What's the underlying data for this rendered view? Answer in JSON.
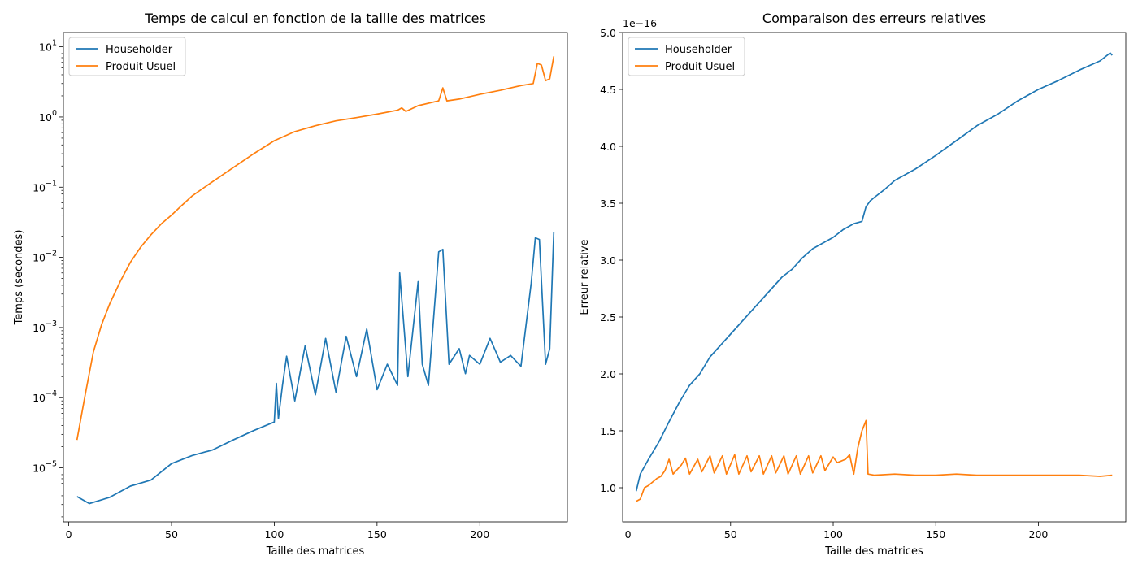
{
  "chart_data": [
    {
      "type": "line",
      "title": "Temps de calcul en fonction de la taille des matrices",
      "xlabel": "Taille des matrices",
      "ylabel": "Temps (secondes)",
      "yscale": "log",
      "xlim": [
        -2.6,
        242.6
      ],
      "ylim": [
        1.7e-06,
        16
      ],
      "xticks": [
        0,
        50,
        100,
        150,
        200
      ],
      "xtick_labels": [
        "0",
        "50",
        "100",
        "150",
        "200"
      ],
      "yticks": [
        1e-05,
        0.0001,
        0.001,
        0.01,
        0.1,
        1,
        10
      ],
      "ytick_labels": [
        {
          "base": "10",
          "exp": "−5"
        },
        {
          "base": "10",
          "exp": "−4"
        },
        {
          "base": "10",
          "exp": "−3"
        },
        {
          "base": "10",
          "exp": "−2"
        },
        {
          "base": "10",
          "exp": "−1"
        },
        {
          "base": "10",
          "exp": "0"
        },
        {
          "base": "10",
          "exp": "1"
        }
      ],
      "legend": {
        "position": "upper-left"
      },
      "series": [
        {
          "name": "Householder",
          "color": "#1f77b4",
          "x": [
            4,
            10,
            20,
            30,
            40,
            50,
            60,
            70,
            80,
            90,
            100,
            101,
            102,
            104,
            106,
            110,
            115,
            120,
            125,
            130,
            135,
            140,
            145,
            150,
            155,
            160,
            161,
            165,
            170,
            172,
            175,
            180,
            182,
            185,
            190,
            193,
            195,
            200,
            205,
            210,
            215,
            220,
            225,
            227,
            229,
            232,
            234,
            236
          ],
          "values": [
            3.9e-06,
            3.1e-06,
            3.8e-06,
            5.5e-06,
            6.7e-06,
            1.15e-05,
            1.5e-05,
            1.8e-05,
            2.5e-05,
            3.4e-05,
            4.5e-05,
            0.00016,
            5e-05,
            0.00015,
            0.00039,
            9e-05,
            0.00055,
            0.00011,
            0.0007,
            0.00012,
            0.00075,
            0.0002,
            0.00095,
            0.00013,
            0.0003,
            0.00015,
            0.006,
            0.0002,
            0.0045,
            0.0003,
            0.00015,
            0.012,
            0.013,
            0.0003,
            0.0005,
            0.00022,
            0.0004,
            0.0003,
            0.0007,
            0.00032,
            0.0004,
            0.00028,
            0.0043,
            0.019,
            0.018,
            0.0003,
            0.0005,
            0.023
          ]
        },
        {
          "name": "Produit Usuel",
          "color": "#ff7f0e",
          "x": [
            4,
            8,
            12,
            16,
            20,
            25,
            30,
            35,
            40,
            45,
            50,
            55,
            60,
            70,
            80,
            90,
            100,
            110,
            120,
            130,
            140,
            150,
            160,
            162,
            164,
            170,
            180,
            182,
            184,
            190,
            200,
            210,
            220,
            226,
            228,
            230,
            232,
            234,
            236
          ],
          "values": [
            2.5e-05,
            0.00011,
            0.00045,
            0.0011,
            0.0022,
            0.0045,
            0.0085,
            0.014,
            0.021,
            0.03,
            0.04,
            0.055,
            0.075,
            0.12,
            0.19,
            0.3,
            0.46,
            0.62,
            0.75,
            0.88,
            0.98,
            1.1,
            1.25,
            1.35,
            1.2,
            1.45,
            1.7,
            2.6,
            1.7,
            1.8,
            2.1,
            2.4,
            2.8,
            3.0,
            5.8,
            5.5,
            3.3,
            3.5,
            7.3
          ]
        }
      ]
    },
    {
      "type": "line",
      "title": "Comparaison des erreurs relatives",
      "xlabel": "Taille des matrices",
      "ylabel": "Erreur relative",
      "offset_label": "1e−16",
      "yscale": "linear",
      "xlim": [
        -2.6,
        242.6
      ],
      "ylim": [
        0.7,
        5.0
      ],
      "xticks": [
        0,
        50,
        100,
        150,
        200
      ],
      "xtick_labels": [
        "0",
        "50",
        "100",
        "150",
        "200"
      ],
      "yticks": [
        1.0,
        1.5,
        2.0,
        2.5,
        3.0,
        3.5,
        4.0,
        4.5,
        5.0
      ],
      "ytick_labels": [
        "1.0",
        "1.5",
        "2.0",
        "2.5",
        "3.0",
        "3.5",
        "4.0",
        "4.5",
        "5.0"
      ],
      "legend": {
        "position": "upper-left"
      },
      "series": [
        {
          "name": "Householder",
          "color": "#1f77b4",
          "x": [
            4,
            6,
            10,
            15,
            20,
            25,
            30,
            35,
            40,
            45,
            50,
            55,
            60,
            65,
            70,
            75,
            80,
            85,
            90,
            95,
            100,
            105,
            110,
            114,
            116,
            118,
            120,
            125,
            130,
            140,
            150,
            160,
            170,
            180,
            190,
            200,
            210,
            220,
            230,
            235,
            236
          ],
          "values": [
            0.97,
            1.12,
            1.25,
            1.4,
            1.58,
            1.75,
            1.9,
            2.0,
            2.15,
            2.25,
            2.35,
            2.45,
            2.55,
            2.65,
            2.75,
            2.85,
            2.92,
            3.02,
            3.1,
            3.15,
            3.2,
            3.27,
            3.32,
            3.34,
            3.47,
            3.52,
            3.55,
            3.62,
            3.7,
            3.8,
            3.92,
            4.05,
            4.18,
            4.28,
            4.4,
            4.5,
            4.58,
            4.67,
            4.75,
            4.82,
            4.8
          ]
        },
        {
          "name": "Produit Usuel",
          "color": "#ff7f0e",
          "x": [
            4,
            6,
            8,
            10,
            12,
            14,
            16,
            18,
            20,
            22,
            26,
            28,
            30,
            34,
            36,
            40,
            42,
            46,
            48,
            52,
            54,
            58,
            60,
            64,
            66,
            70,
            72,
            76,
            78,
            82,
            84,
            88,
            90,
            94,
            96,
            100,
            102,
            106,
            108,
            110,
            112,
            114,
            116,
            117,
            120,
            130,
            140,
            150,
            160,
            170,
            180,
            190,
            200,
            210,
            220,
            230,
            236
          ],
          "values": [
            0.88,
            0.9,
            1.0,
            1.02,
            1.05,
            1.08,
            1.1,
            1.15,
            1.25,
            1.12,
            1.2,
            1.26,
            1.12,
            1.25,
            1.14,
            1.28,
            1.13,
            1.28,
            1.12,
            1.29,
            1.12,
            1.28,
            1.14,
            1.28,
            1.12,
            1.28,
            1.13,
            1.28,
            1.12,
            1.28,
            1.12,
            1.28,
            1.13,
            1.28,
            1.15,
            1.27,
            1.22,
            1.25,
            1.29,
            1.12,
            1.35,
            1.5,
            1.59,
            1.12,
            1.11,
            1.12,
            1.11,
            1.11,
            1.12,
            1.11,
            1.11,
            1.11,
            1.11,
            1.11,
            1.11,
            1.1,
            1.11
          ]
        }
      ]
    }
  ]
}
